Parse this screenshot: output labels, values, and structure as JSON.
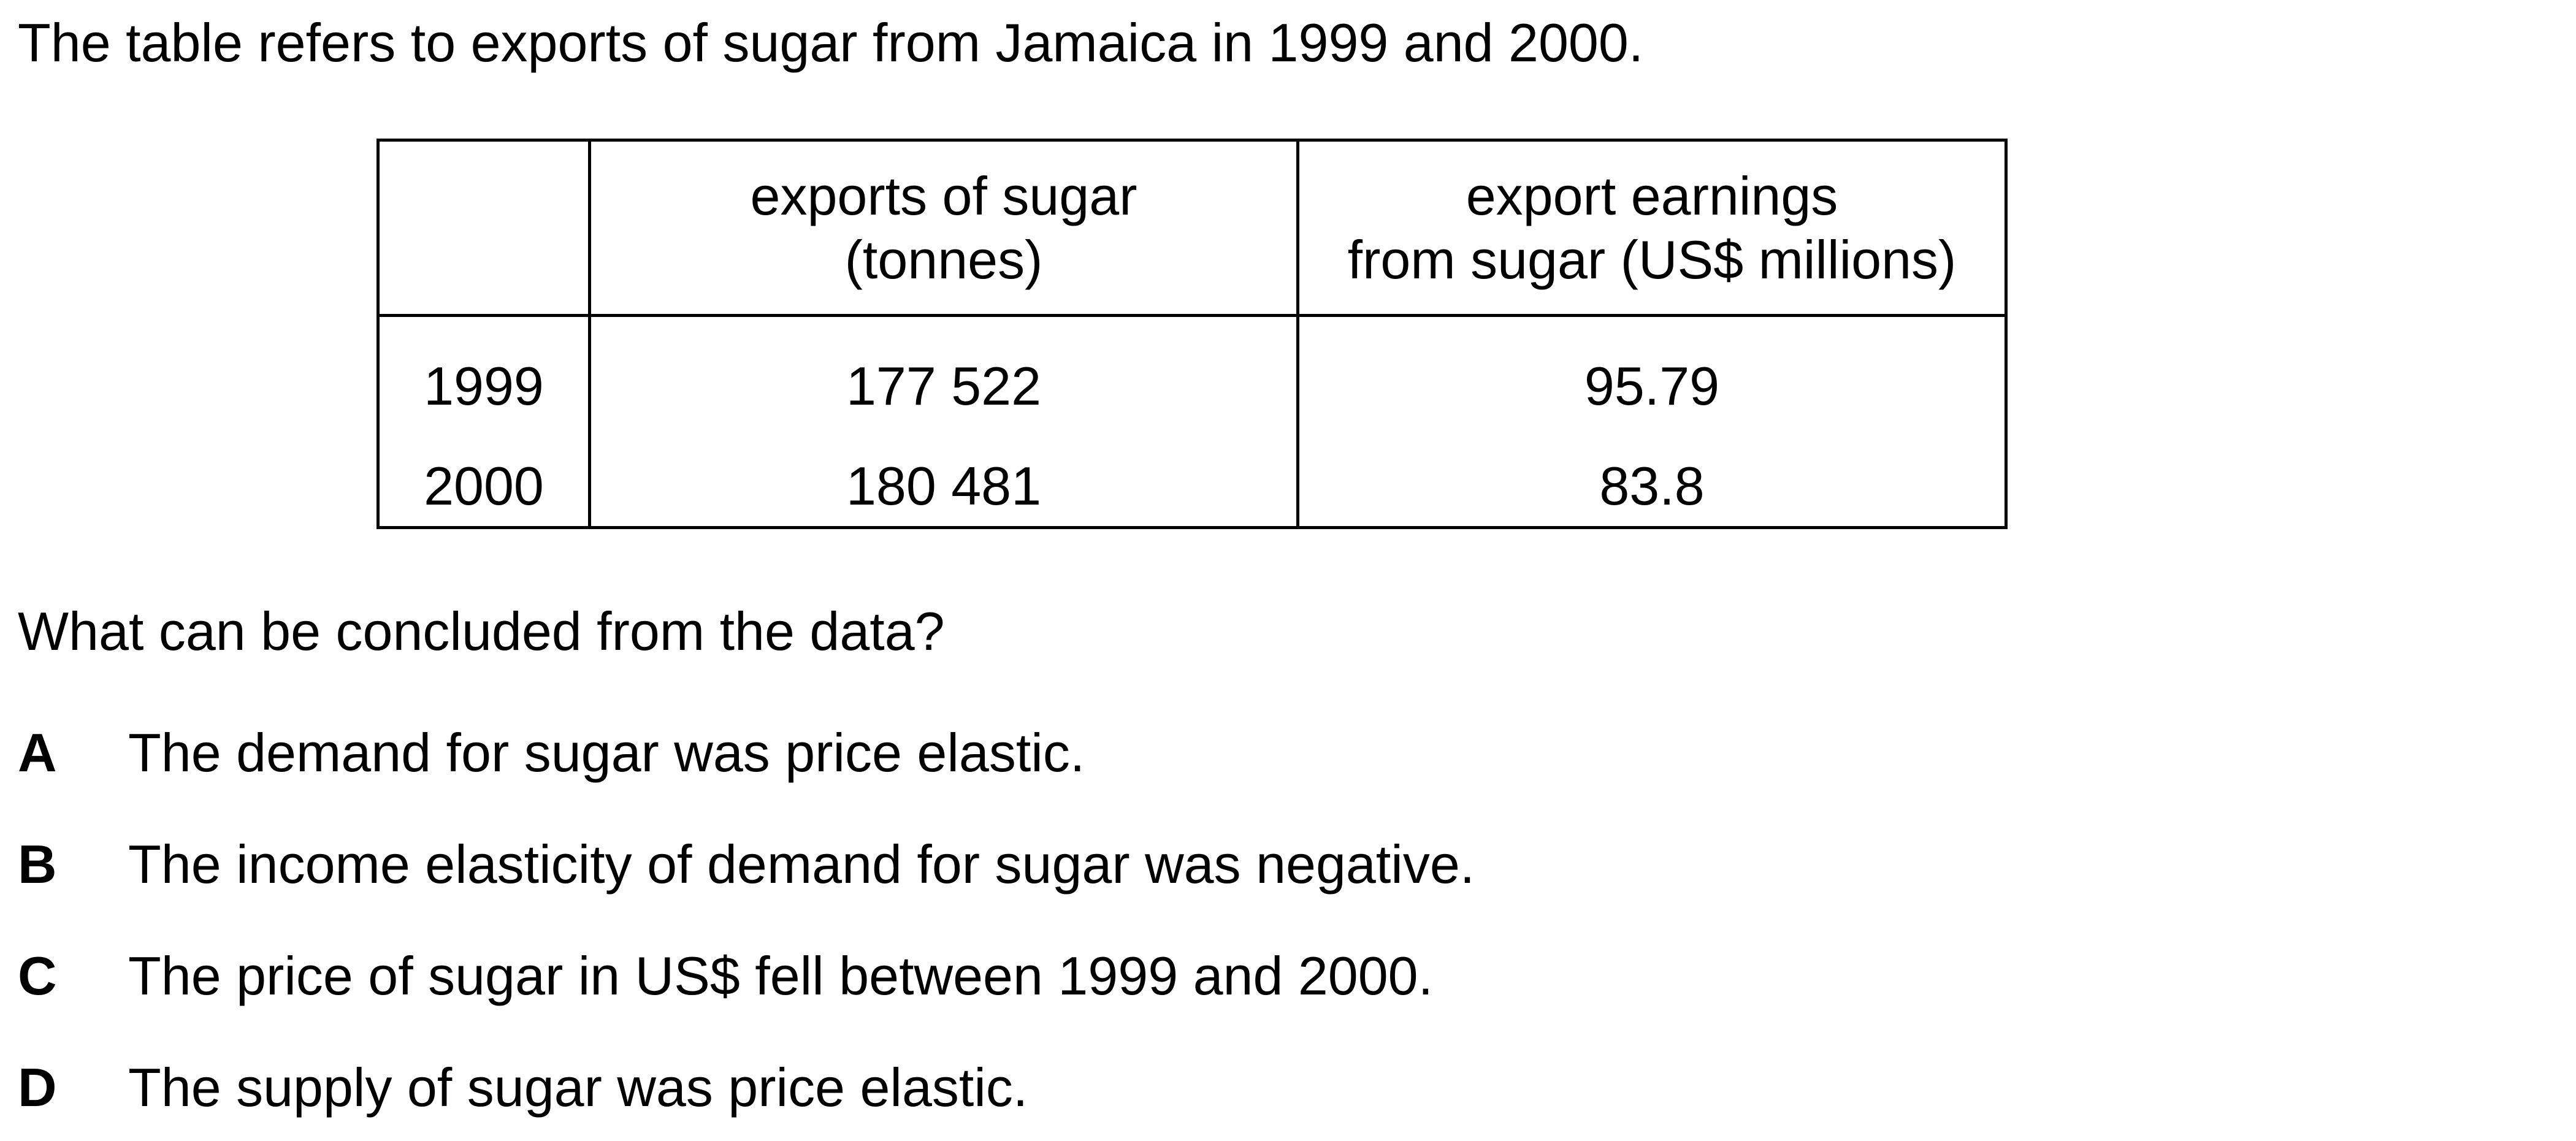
{
  "intro": "The table refers to exports of sugar from Jamaica in 1999 and 2000.",
  "table": {
    "headers": {
      "year": "",
      "exports_line1": "exports of sugar",
      "exports_line2": "(tonnes)",
      "earnings_line1": "export earnings",
      "earnings_line2": "from sugar (US$ millions)"
    },
    "rows": [
      {
        "year": "1999",
        "exports": "177 522",
        "earnings": "95.79"
      },
      {
        "year": "2000",
        "exports": "180 481",
        "earnings": "83.8"
      }
    ]
  },
  "question": "What can be concluded from the data?",
  "options": [
    {
      "letter": "A",
      "text": "The demand for sugar was price elastic."
    },
    {
      "letter": "B",
      "text": "The income elasticity of demand for sugar was negative."
    },
    {
      "letter": "C",
      "text": "The price of sugar in US$ fell between 1999 and 2000."
    },
    {
      "letter": "D",
      "text": "The supply of sugar was price elastic."
    }
  ]
}
